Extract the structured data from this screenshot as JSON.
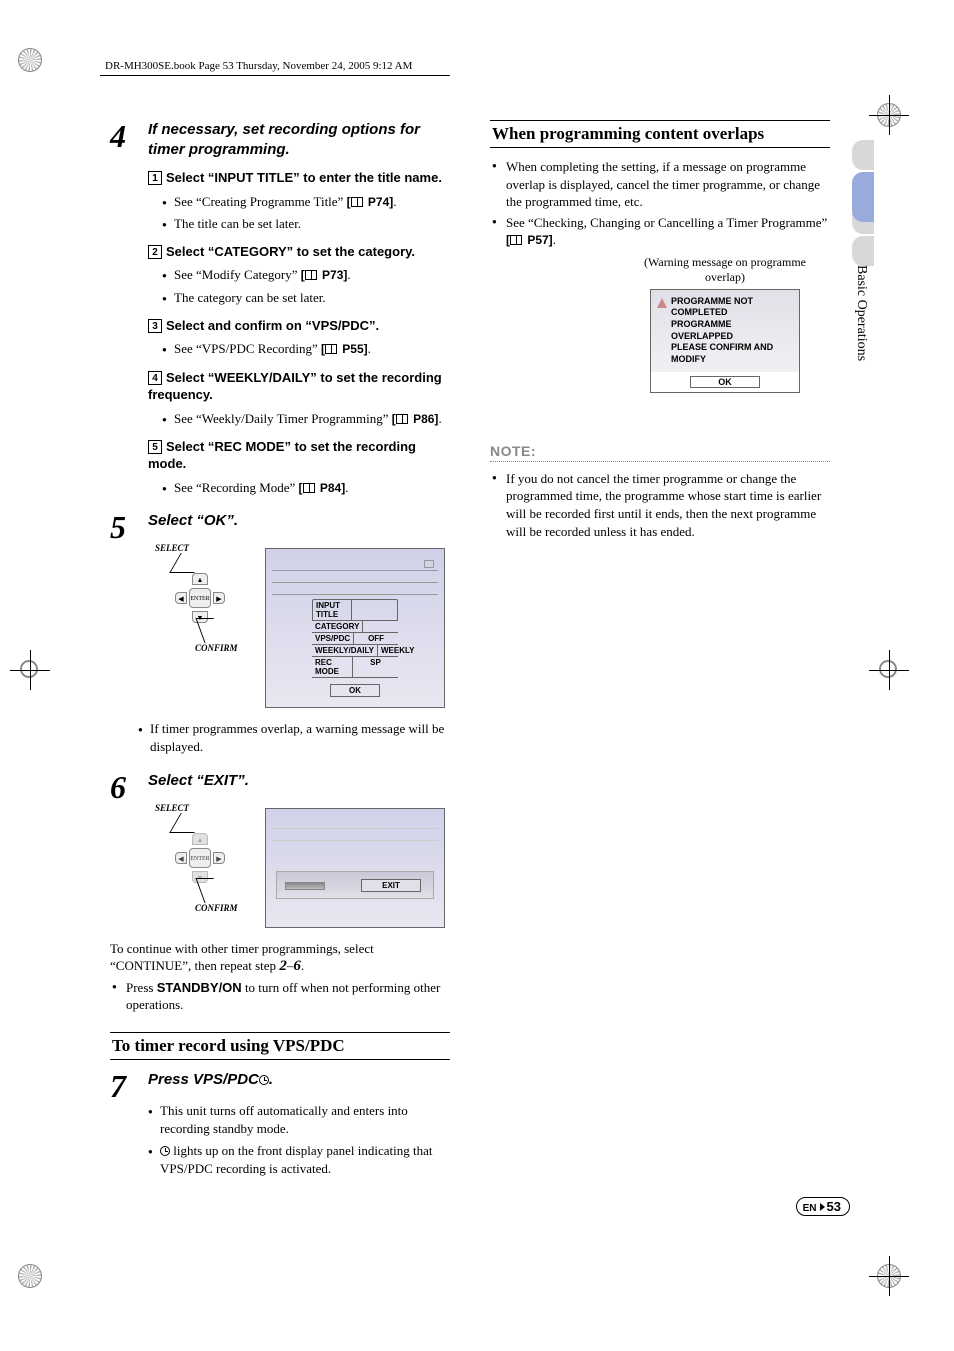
{
  "page_header": "DR-MH300SE.book  Page 53  Thursday, November 24, 2005  9:12 AM",
  "side_tab": "Basic Operations",
  "footer": {
    "lang": "EN",
    "page": "53"
  },
  "left": {
    "step4": {
      "num": "4",
      "title": "If necessary, set recording options for timer programming.",
      "subs": [
        {
          "n": "1",
          "text_a": "Select “",
          "bold": "INPUT TITLE",
          "text_b": "” to enter the title name.",
          "bullets": [
            {
              "t": "See “Creating Programme Title” ",
              "ref": "[",
              "page": " P74]",
              "after": "."
            },
            {
              "t": "The title can be set later."
            }
          ]
        },
        {
          "n": "2",
          "text_a": "Select “",
          "bold": "CATEGORY",
          "text_b": "” to set the category.",
          "bullets": [
            {
              "t": "See “Modify Category” ",
              "ref": "[",
              "page": " P73]",
              "after": "."
            },
            {
              "t": "The category can be set later."
            }
          ]
        },
        {
          "n": "3",
          "text_a": "Select and confirm on “",
          "bold": "VPS/PDC",
          "text_b": "”.",
          "bullets": [
            {
              "t": "See “VPS/PDC Recording” ",
              "ref": "[",
              "page": " P55]",
              "after": "."
            }
          ]
        },
        {
          "n": "4",
          "text_a": "Select “",
          "bold": "WEEKLY/DAILY",
          "text_b": "” to set the recording frequency.",
          "bullets": [
            {
              "t": "See “Weekly/Daily Timer Programming” ",
              "ref": "[",
              "page": " P86]",
              "after": "."
            }
          ]
        },
        {
          "n": "5",
          "text_a": "Select “",
          "bold": "REC MODE",
          "text_b": "” to set the recording mode.",
          "bullets": [
            {
              "t": "See “Recording Mode” ",
              "ref": "[",
              "page": " P84]",
              "after": "."
            }
          ]
        }
      ]
    },
    "step5": {
      "num": "5",
      "title": "Select “OK”.",
      "remote": {
        "select": "SELECT",
        "confirm": "CONFIRM",
        "enter": "ENTER"
      },
      "screen_table": [
        {
          "l": "INPUT TITLE",
          "r": ""
        },
        {
          "l": "CATEGORY",
          "r": ""
        },
        {
          "l": "VPS/PDC",
          "r": "OFF"
        },
        {
          "l": "WEEKLY/DAILY",
          "r": "WEEKLY"
        },
        {
          "l": "REC MODE",
          "r": "SP"
        }
      ],
      "screen_ok": "OK",
      "bullet": "If timer programmes overlap, a warning message will be displayed."
    },
    "step6": {
      "num": "6",
      "title": "Select “EXIT”.",
      "remote": {
        "select": "SELECT",
        "confirm": "CONFIRM",
        "enter": "ENTER"
      },
      "screen_exit": "EXIT",
      "cont_a": "To continue with other timer programmings, select “CONTINUE”, then repeat step ",
      "cont_b": "2",
      "cont_c": "–",
      "cont_d": "6",
      "cont_e": ".",
      "bullet_a": "Press ",
      "bullet_bold": "STANDBY/ON",
      "bullet_b": " to turn off when not performing other operations."
    },
    "heading_vps": "To timer record using VPS/PDC",
    "step7": {
      "num": "7",
      "title_a": "Press VPS/PDC",
      "title_b": ".",
      "bullets": [
        "This unit turns off automatically and enters into recording standby mode.",
        " lights up on the front display panel indicating that VPS/PDC recording is activated."
      ]
    }
  },
  "right": {
    "heading_overlap": "When programming content overlaps",
    "bullets": [
      "When completing the setting, if a message on programme overlap is displayed, cancel the timer programme, or change the programmed time, etc.",
      {
        "a": "See “Checking, Changing or Cancelling a Timer Programme” ",
        "ref": "[",
        "page": " P57]",
        "after": "."
      }
    ],
    "warning_caption": "(Warning message on programme overlap)",
    "warning_lines": [
      "PROGRAMME NOT COMPLETED",
      "PROGRAMME OVERLAPPED",
      "PLEASE CONFIRM AND MODIFY"
    ],
    "warning_ok": "OK",
    "note_label": "NOTE:",
    "note_bullet": "If you do not cancel the timer programme or change the programmed time, the programme whose start time is earlier will be recorded first until it ends, then the next programme will be recorded unless it has ended."
  }
}
